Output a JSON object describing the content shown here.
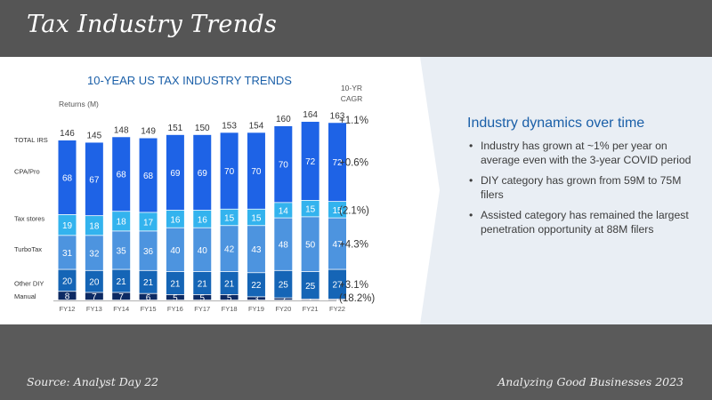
{
  "slide": {
    "title": "Tax Industry Trends",
    "source": "Source: Analyst Day 22",
    "credit": "Analyzing Good Businesses 2023"
  },
  "panel": {
    "heading": "Industry dynamics over time",
    "bullet_char": "•",
    "bullets": [
      "Industry has grown at ~1% per year on average even with the 3-year COVID period",
      "DIY category has grown from 59M to 75M filers",
      "Assisted category has remained the largest penetration opportunity at 88M filers"
    ]
  },
  "colors": {
    "title_blue": "#1a5fa8",
    "manual": "#0d2a63",
    "other_diy": "#1565b6",
    "turbotax": "#4d94df",
    "tax_stores": "#33b3ee",
    "cpa_pro": "#1e63e6"
  },
  "chart_data": {
    "type": "bar",
    "stacked": true,
    "title": "10-YEAR US TAX INDUSTRY TRENDS",
    "ylabel": "Returns (M)",
    "cagr_header": [
      "10-YR",
      "CAGR"
    ],
    "total_label": "TOTAL IRS",
    "total_cagr": "+1.1%",
    "categories": [
      "FY12",
      "FY13",
      "FY14",
      "FY15",
      "FY16",
      "FY17",
      "FY18",
      "FY19",
      "FY20",
      "FY21",
      "FY22"
    ],
    "totals": [
      146,
      145,
      148,
      149,
      151,
      150,
      153,
      154,
      160,
      164,
      163
    ],
    "series": [
      {
        "name": "Manual",
        "color": "#0d2a63",
        "cagr": "(18.2%)",
        "values": [
          8,
          7,
          7,
          6,
          5,
          5,
          5,
          3,
          2,
          1,
          1
        ]
      },
      {
        "name": "Other DIY",
        "color": "#1565b6",
        "cagr": "+3.1%",
        "values": [
          20,
          20,
          21,
          21,
          21,
          21,
          21,
          22,
          25,
          25,
          27
        ]
      },
      {
        "name": "TurboTax",
        "color": "#4d94df",
        "cagr": "+4.3%",
        "values": [
          31,
          32,
          35,
          36,
          40,
          40,
          42,
          43,
          48,
          50,
          47
        ]
      },
      {
        "name": "Tax stores",
        "color": "#33b3ee",
        "cagr": "(2.1%)",
        "values": [
          19,
          18,
          18,
          17,
          16,
          16,
          15,
          15,
          14,
          15,
          15
        ]
      },
      {
        "name": "CPA/Pro",
        "color": "#1e63e6",
        "cagr": "+0.6%",
        "values": [
          68,
          67,
          68,
          68,
          69,
          69,
          70,
          70,
          70,
          72,
          72
        ]
      }
    ]
  }
}
